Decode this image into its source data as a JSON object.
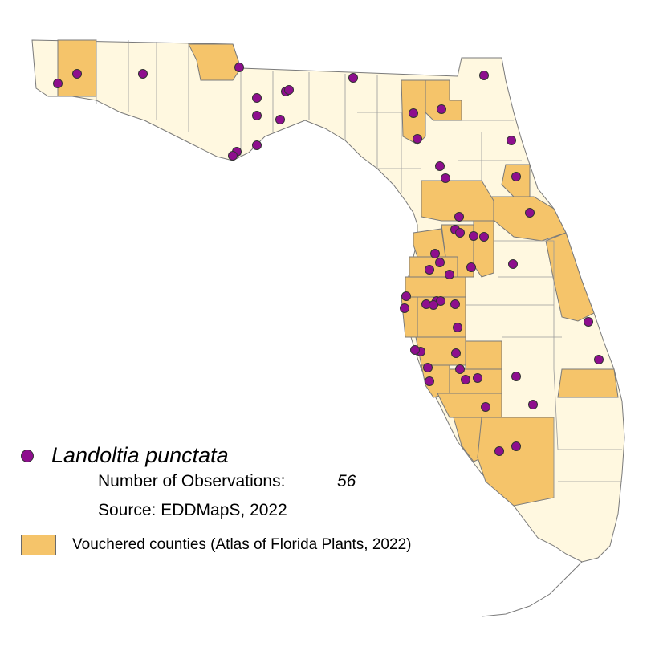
{
  "map": {
    "species": "Landoltia punctata",
    "observations_label": "Number of Observations:",
    "observations_value": "56",
    "source": "Source: EDDMapS, 2022",
    "vouchered_label": "Vouchered counties (Atlas of Florida Plants, 2022)",
    "colors": {
      "land": "#fff8e0",
      "vouchered": "#f5c46a",
      "border": "#7a7a7a",
      "observation": "#8e0e8e",
      "observation_outline": "#333333"
    },
    "observation_count": 56
  }
}
